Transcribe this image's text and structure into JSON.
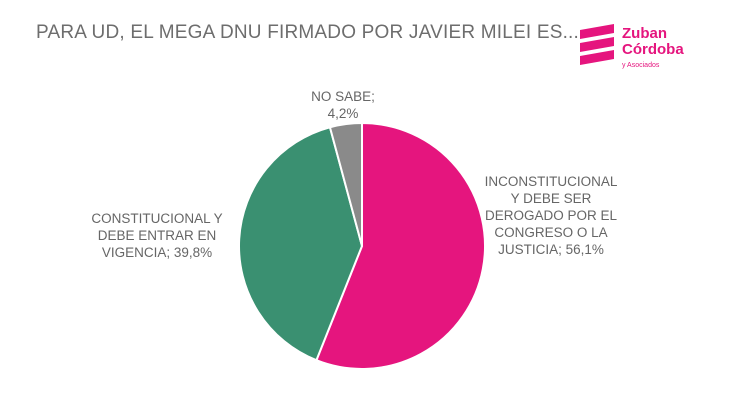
{
  "title": "PARA UD, EL MEGA DNU FIRMADO POR JAVIER MILEI ES...",
  "logo": {
    "line1": "Zuban",
    "line2": "Córdoba",
    "sub": "y Asociados",
    "color": "#e5157e"
  },
  "chart_data": {
    "type": "pie",
    "slices": [
      {
        "label_lines": [
          "INCONSTITUCIONAL",
          "Y DEBE SER",
          "DEROGADO POR EL",
          "CONGRESO O LA",
          "JUSTICIA; 56,1%"
        ],
        "value": 56.1,
        "color": "#e5157e"
      },
      {
        "label_lines": [
          "CONSTITUCIONAL Y",
          "DEBE ENTRAR EN",
          "VIGENCIA; 39,8%"
        ],
        "value": 39.8,
        "color": "#3a9071"
      },
      {
        "label_lines": [
          "NO SABE;",
          "4,2%"
        ],
        "value": 4.2,
        "color": "#8a8a8a"
      }
    ]
  }
}
